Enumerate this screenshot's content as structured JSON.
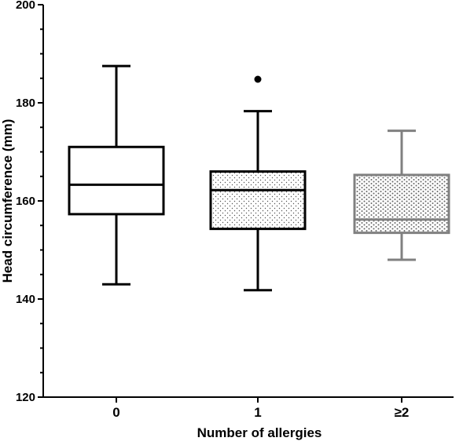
{
  "chart_data": {
    "type": "boxplot",
    "xlabel": "Number of allergies",
    "ylabel": "Head circumference (mm)",
    "ylim": [
      120,
      200
    ],
    "yticks": [
      120,
      140,
      160,
      180,
      200
    ],
    "y_minor_step": 5,
    "grid": false,
    "categories": [
      "0",
      "1",
      "≥2"
    ],
    "series": [
      {
        "category": "0",
        "whisker_low": 143,
        "q1": 157.3,
        "median": 163.3,
        "q3": 171,
        "whisker_high": 187.5,
        "outliers": [],
        "color": "#000000",
        "fill": "none"
      },
      {
        "category": "1",
        "whisker_low": 141.8,
        "q1": 154.3,
        "median": 162.2,
        "q3": 166,
        "whisker_high": 178.3,
        "outliers": [
          184.8
        ],
        "color": "#000000",
        "fill": "fine-dots"
      },
      {
        "category": "≥2",
        "whisker_low": 148,
        "q1": 153.5,
        "median": 156.2,
        "q3": 165.3,
        "whisker_high": 174.3,
        "outliers": [],
        "color": "#808080",
        "fill": "coarse-dots"
      }
    ]
  }
}
